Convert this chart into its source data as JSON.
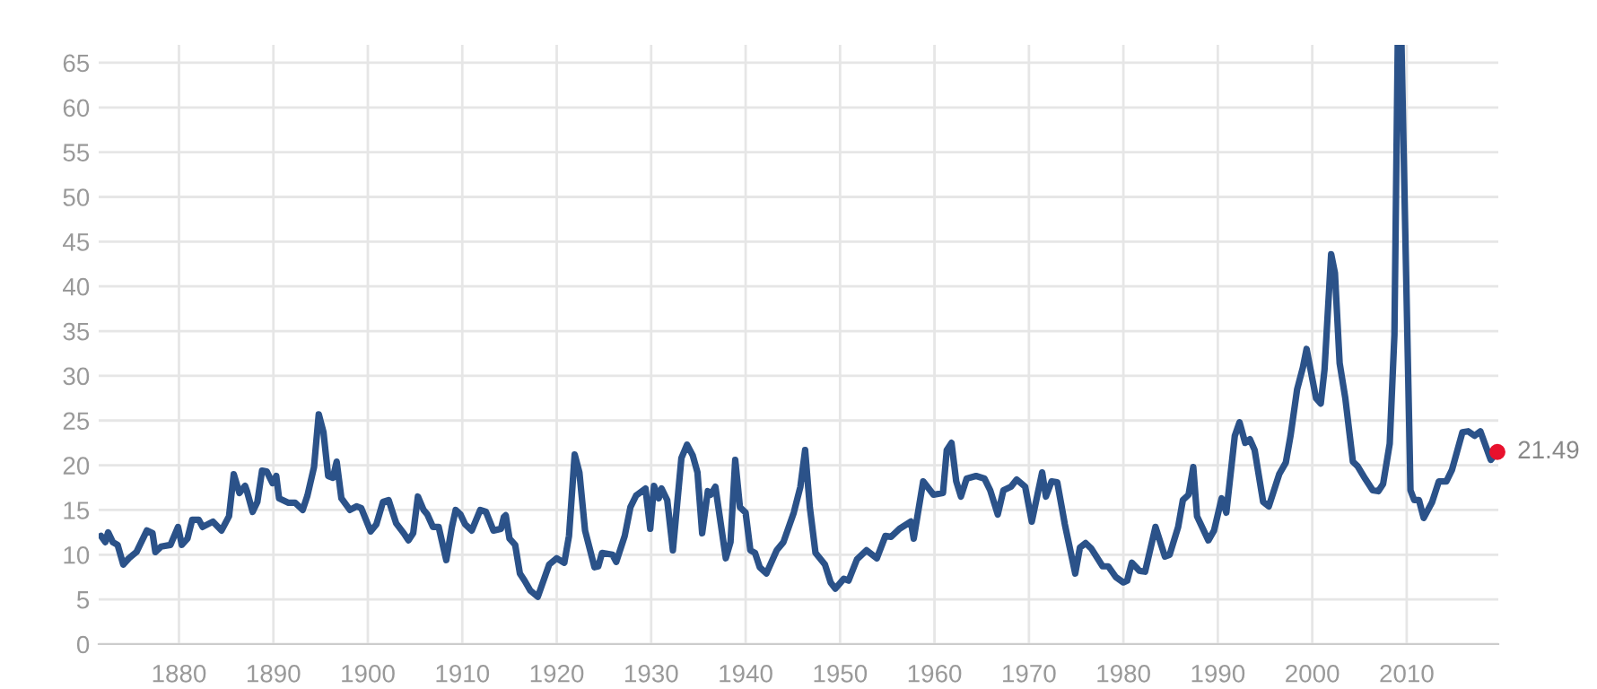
{
  "chart_data": {
    "type": "line",
    "xlim": [
      1871.5,
      2019.7
    ],
    "xticks": [
      1880,
      1890,
      1900,
      1910,
      1920,
      1930,
      1940,
      1950,
      1960,
      1970,
      1980,
      1990,
      2000,
      2010
    ],
    "ylim": [
      0,
      67
    ],
    "yticks": [
      0,
      5,
      10,
      15,
      20,
      25,
      30,
      35,
      40,
      45,
      50,
      55,
      60,
      65
    ],
    "grid": true,
    "line_style": "solid",
    "series": [
      {
        "marker": "none",
        "color": "#2b5289",
        "x": [
          1871.75,
          1872.2,
          1872.5,
          1873,
          1873.5,
          1874.1,
          1874.7,
          1875.5,
          1876.6,
          1877.2,
          1877.5,
          1878.1,
          1879.1,
          1879.9,
          1880.3,
          1880.9,
          1881.4,
          1882.1,
          1882.5,
          1883.6,
          1884.5,
          1885.3,
          1885.8,
          1886.4,
          1887,
          1887.2,
          1887.8,
          1888.3,
          1888.8,
          1889.3,
          1889.9,
          1890.3,
          1890.6,
          1891.6,
          1892.3,
          1893.1,
          1893.6,
          1894.3,
          1894.8,
          1895.3,
          1895.8,
          1896.3,
          1896.7,
          1897.2,
          1898.1,
          1898.8,
          1899.3,
          1900.3,
          1900.9,
          1901.6,
          1902.2,
          1903,
          1903.8,
          1904.3,
          1904.8,
          1905.3,
          1905.9,
          1906.3,
          1906.9,
          1907.5,
          1908.3,
          1908.9,
          1909.3,
          1909.8,
          1910.3,
          1911,
          1911.9,
          1912.5,
          1913.3,
          1914.1,
          1914.4,
          1914.6,
          1915,
          1915.6,
          1916.1,
          1916.6,
          1917.2,
          1918,
          1919.2,
          1920,
          1920.8,
          1921.3,
          1921.9,
          1922.4,
          1923,
          1924,
          1924.4,
          1924.8,
          1925.9,
          1926.3,
          1927.2,
          1927.8,
          1928.4,
          1929.4,
          1929.9,
          1930.3,
          1930.8,
          1931.1,
          1931.7,
          1932.3,
          1933.2,
          1933.8,
          1934.4,
          1934.9,
          1935.4,
          1936,
          1936.3,
          1936.8,
          1937.9,
          1938.4,
          1938.9,
          1939.4,
          1940,
          1940.5,
          1941,
          1941.5,
          1942.2,
          1943.3,
          1944,
          1945.1,
          1945.8,
          1946.3,
          1946.8,
          1947.4,
          1948.4,
          1949,
          1949.5,
          1950.4,
          1950.9,
          1951.8,
          1952.8,
          1953.9,
          1954.8,
          1955.4,
          1956.3,
          1957.5,
          1957.8,
          1958.8,
          1959.9,
          1960.9,
          1961.3,
          1961.8,
          1962.3,
          1962.8,
          1963.4,
          1964.4,
          1965.3,
          1965.9,
          1966.7,
          1967.3,
          1968.1,
          1968.7,
          1969.6,
          1970.3,
          1971.4,
          1971.8,
          1972.4,
          1973,
          1973.8,
          1974.9,
          1975.4,
          1976,
          1976.6,
          1977.8,
          1978.4,
          1979.2,
          1980,
          1980.4,
          1980.9,
          1981.7,
          1982.3,
          1983.4,
          1984.4,
          1984.9,
          1985.8,
          1986.3,
          1986.9,
          1987.4,
          1987.8,
          1989,
          1989.6,
          1990.4,
          1990.9,
          1991.8,
          1992.3,
          1992.9,
          1993.4,
          1993.9,
          1994.8,
          1995.4,
          1996.5,
          1997.2,
          1997.7,
          1998.4,
          1999,
          1999.4,
          2000.4,
          2000.9,
          2001.3,
          2002,
          2002.4,
          2002.9,
          2003.5,
          2004.3,
          2004.8,
          2005.6,
          2006.4,
          2007,
          2007.5,
          2008.2,
          2008.7,
          2009.05,
          2009.45,
          2010.4,
          2010.8,
          2011.3,
          2011.8,
          2012.7,
          2013.4,
          2014.2,
          2014.8,
          2015.9,
          2016.5,
          2017.2,
          2017.8,
          2018.9,
          2019.6
        ],
        "values": [
          12.1,
          11.4,
          12.5,
          11.4,
          11.1,
          8.9,
          9.6,
          10.3,
          12.7,
          12.4,
          10.3,
          10.9,
          11.1,
          13.1,
          11.1,
          11.8,
          13.9,
          13.9,
          13.1,
          13.7,
          12.7,
          14.3,
          19.0,
          16.9,
          17.7,
          17.1,
          14.8,
          15.9,
          19.4,
          19.3,
          18.0,
          18.8,
          16.3,
          15.8,
          15.8,
          15.0,
          16.6,
          19.8,
          25.7,
          23.7,
          18.8,
          18.6,
          20.4,
          16.3,
          15.0,
          15.4,
          15.2,
          12.6,
          13.4,
          15.9,
          16.1,
          13.5,
          12.4,
          11.6,
          12.4,
          16.5,
          15.0,
          14.5,
          13.1,
          13.1,
          9.4,
          13.1,
          15.0,
          14.5,
          13.4,
          12.7,
          15.0,
          14.8,
          12.7,
          12.9,
          14.2,
          14.4,
          11.8,
          11.1,
          7.9,
          7.1,
          6.0,
          5.3,
          8.9,
          9.6,
          9.1,
          12.1,
          21.2,
          19.2,
          12.7,
          8.6,
          8.7,
          10.2,
          10.0,
          9.2,
          12.1,
          15.3,
          16.6,
          17.4,
          12.9,
          17.7,
          16.3,
          17.4,
          16.1,
          10.5,
          20.8,
          22.3,
          21.1,
          19.2,
          12.4,
          17.1,
          16.7,
          17.6,
          9.6,
          11.4,
          20.6,
          15.3,
          14.7,
          10.5,
          10.2,
          8.6,
          7.9,
          10.5,
          11.4,
          14.7,
          17.6,
          21.7,
          15.3,
          10.2,
          8.9,
          6.9,
          6.2,
          7.3,
          7.1,
          9.5,
          10.5,
          9.6,
          12.1,
          12.0,
          12.9,
          13.7,
          11.8,
          18.2,
          16.7,
          16.9,
          21.7,
          22.5,
          18.2,
          16.5,
          18.5,
          18.8,
          18.5,
          17.2,
          14.5,
          17.2,
          17.6,
          18.4,
          17.6,
          13.7,
          19.2,
          16.5,
          18.2,
          18.1,
          13.4,
          7.9,
          10.8,
          11.3,
          10.7,
          8.7,
          8.7,
          7.5,
          6.9,
          7.1,
          9.1,
          8.2,
          8.1,
          13.1,
          9.8,
          10.0,
          13.1,
          16.1,
          16.7,
          19.8,
          14.3,
          11.6,
          12.7,
          16.3,
          14.7,
          23.3,
          24.8,
          22.5,
          22.9,
          21.7,
          15.9,
          15.4,
          19.0,
          20.3,
          23.3,
          28.5,
          30.9,
          33.0,
          27.5,
          26.9,
          30.7,
          43.6,
          41.5,
          31.4,
          27.5,
          20.4,
          19.9,
          18.5,
          17.2,
          17.1,
          17.9,
          22.4,
          34.6,
          67,
          67,
          17.2,
          16.1,
          16.1,
          14.1,
          15.9,
          18.2,
          18.2,
          19.5,
          23.7,
          23.8,
          23.3,
          23.8,
          20.6,
          21.5
        ]
      },
      {
        "type": "scatter",
        "marker": "circle",
        "color": "#e8112d",
        "x": [
          2019.6
        ],
        "values": [
          21.49
        ],
        "value_labels": [
          "21.49"
        ]
      }
    ]
  }
}
